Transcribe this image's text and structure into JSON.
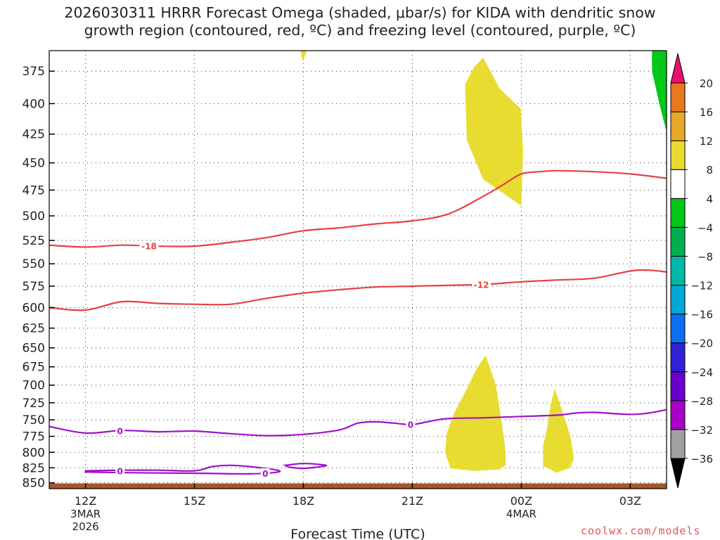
{
  "title": {
    "line1": "2026030311 HRRR Forecast Omega (shaded, μbar/s) for KIDA with dendritic snow",
    "line2": "growth region (contoured, red, ºC) and freezing level (contoured, purple, ºC)"
  },
  "credit": "coolwx.com/models",
  "chart_data": {
    "type": "time-height cross section",
    "title": "2026030311 HRRR Forecast Omega (shaded, μbar/s) for KIDA with dendritic snow growth region (contoured, red, ºC) and freezing level (contoured, purple, ºC)",
    "xlabel": "Forecast Time (UTC)",
    "ylabel": "",
    "xlim_hours": [
      11,
      28
    ],
    "ylim_hPa": [
      360,
      860
    ],
    "x_ticks": [
      {
        "hour": 12,
        "label": "12Z",
        "sub": [
          "3MAR",
          "2026"
        ]
      },
      {
        "hour": 15,
        "label": "15Z",
        "sub": []
      },
      {
        "hour": 18,
        "label": "18Z",
        "sub": []
      },
      {
        "hour": 21,
        "label": "21Z",
        "sub": []
      },
      {
        "hour": 24,
        "label": "00Z",
        "sub": [
          "4MAR"
        ]
      },
      {
        "hour": 27,
        "label": "03Z",
        "sub": []
      }
    ],
    "y_ticks": [
      375,
      400,
      425,
      450,
      475,
      500,
      525,
      550,
      575,
      600,
      625,
      650,
      675,
      700,
      725,
      750,
      775,
      800,
      825,
      850
    ],
    "colorbar": {
      "levels": [
        -36,
        -32,
        -28,
        -24,
        -20,
        -16,
        -12,
        -8,
        -4,
        4,
        8,
        12,
        16,
        20
      ],
      "colors": [
        "#a0a0a0",
        "#a800c8",
        "#6a00d0",
        "#3020d8",
        "#0a6ff0",
        "#00a8d8",
        "#00b8a8",
        "#00b050",
        "#00c818",
        "#ffffff",
        "#e8dc30",
        "#e8a828",
        "#e87820",
        "#e84040",
        "#e8105c"
      ],
      "under_color": "#000000",
      "over_color": "#e8106c"
    },
    "omega_regions": [
      {
        "name": "omega-positive-4-8-upper-left",
        "color": "#e8dc30",
        "points": [
          [
            17.92,
            360
          ],
          [
            18.1,
            360
          ],
          [
            17.98,
            368
          ]
        ]
      },
      {
        "name": "omega-positive-4-8-upper",
        "color": "#e8dc30",
        "points": [
          [
            22.95,
            365
          ],
          [
            23.4,
            388
          ],
          [
            23.98,
            404
          ],
          [
            24.05,
            440
          ],
          [
            24.0,
            490
          ],
          [
            23.5,
            478
          ],
          [
            22.95,
            465
          ],
          [
            22.5,
            430
          ],
          [
            22.45,
            385
          ],
          [
            22.7,
            372
          ]
        ]
      },
      {
        "name": "omega-negative-4-8-upper-right",
        "color": "#00c818",
        "points": [
          [
            28,
            360
          ],
          [
            28,
            423
          ],
          [
            27.8,
            400
          ],
          [
            27.6,
            375
          ],
          [
            27.6,
            360
          ]
        ]
      },
      {
        "name": "omega-positive-4-8-lower-center",
        "color": "#e8dc30",
        "points": [
          [
            23.02,
            660
          ],
          [
            23.3,
            700
          ],
          [
            23.45,
            750
          ],
          [
            23.55,
            790
          ],
          [
            23.58,
            820
          ],
          [
            23.4,
            828
          ],
          [
            22.7,
            830
          ],
          [
            22.05,
            826
          ],
          [
            21.9,
            800
          ],
          [
            21.95,
            770
          ],
          [
            22.15,
            740
          ],
          [
            22.45,
            710
          ],
          [
            22.8,
            675
          ]
        ]
      },
      {
        "name": "omega-positive-4-8-lower-right",
        "color": "#e8dc30",
        "points": [
          [
            24.92,
            705
          ],
          [
            25.15,
            740
          ],
          [
            25.35,
            775
          ],
          [
            25.45,
            810
          ],
          [
            25.35,
            825
          ],
          [
            24.97,
            833
          ],
          [
            24.6,
            822
          ],
          [
            24.6,
            790
          ],
          [
            24.72,
            760
          ],
          [
            24.8,
            730
          ]
        ]
      }
    ],
    "ground": {
      "color": "#a8552a",
      "pressure_hPa": 851
    },
    "contours_dendritic": [
      {
        "label": "-18",
        "label_at_hour": 13.75,
        "points": [
          [
            11,
            530
          ],
          [
            12,
            532
          ],
          [
            13,
            530
          ],
          [
            14,
            531
          ],
          [
            15,
            531
          ],
          [
            16,
            527
          ],
          [
            17,
            522
          ],
          [
            18,
            515
          ],
          [
            19,
            512
          ],
          [
            20,
            508
          ],
          [
            21,
            505
          ],
          [
            22,
            498
          ],
          [
            23,
            480
          ],
          [
            23.5,
            470
          ],
          [
            24,
            460
          ],
          [
            24.5,
            458
          ],
          [
            25,
            457
          ],
          [
            26,
            458
          ],
          [
            27,
            460
          ],
          [
            28,
            464
          ]
        ]
      },
      {
        "label": "-12",
        "label_at_hour": 22.9,
        "points": [
          [
            11,
            600
          ],
          [
            12,
            603
          ],
          [
            13,
            593
          ],
          [
            14,
            595
          ],
          [
            15,
            596
          ],
          [
            16,
            596
          ],
          [
            17,
            589
          ],
          [
            18,
            583
          ],
          [
            19,
            579
          ],
          [
            20,
            576
          ],
          [
            21,
            575
          ],
          [
            22,
            574
          ],
          [
            23,
            573
          ],
          [
            24,
            570
          ],
          [
            25,
            568
          ],
          [
            26,
            566
          ],
          [
            27,
            558
          ],
          [
            27.5,
            557
          ],
          [
            28,
            559
          ]
        ]
      }
    ],
    "contours_freezing": [
      {
        "label": "0",
        "label_at_hour": 12.95,
        "points": [
          [
            11,
            760
          ],
          [
            12,
            770
          ],
          [
            13,
            766
          ],
          [
            14,
            768
          ],
          [
            15,
            767
          ],
          [
            16,
            771
          ],
          [
            17,
            774
          ],
          [
            18,
            772
          ],
          [
            19,
            765
          ],
          [
            19.5,
            755
          ],
          [
            20,
            753
          ],
          [
            20.5,
            755
          ],
          [
            21,
            757
          ],
          [
            21.5,
            752
          ],
          [
            22,
            748
          ],
          [
            23,
            747
          ],
          [
            24,
            745
          ],
          [
            25,
            743
          ],
          [
            25.5,
            740
          ],
          [
            26,
            739
          ],
          [
            27,
            742
          ],
          [
            27.5,
            740
          ],
          [
            28,
            735
          ]
        ]
      },
      {
        "label": "0",
        "label_at_hour": 12.95,
        "closed": true,
        "points": [
          [
            12,
            830
          ],
          [
            13,
            829
          ],
          [
            14,
            829
          ],
          [
            15,
            830
          ],
          [
            15.5,
            823
          ],
          [
            16,
            821
          ],
          [
            16.5,
            823
          ],
          [
            17.2,
            828
          ],
          [
            17.3,
            832
          ],
          [
            16.5,
            835
          ],
          [
            15,
            834
          ],
          [
            13,
            833
          ],
          [
            12,
            832
          ]
        ]
      },
      {
        "label": "0",
        "label_at_hour": 16.95,
        "label_only": true,
        "points": []
      },
      {
        "label": "",
        "closed": true,
        "points": [
          [
            17.5,
            821
          ],
          [
            18,
            818
          ],
          [
            18.5,
            820
          ],
          [
            18.6,
            822
          ],
          [
            18,
            826
          ],
          [
            17.6,
            824
          ]
        ]
      }
    ]
  }
}
